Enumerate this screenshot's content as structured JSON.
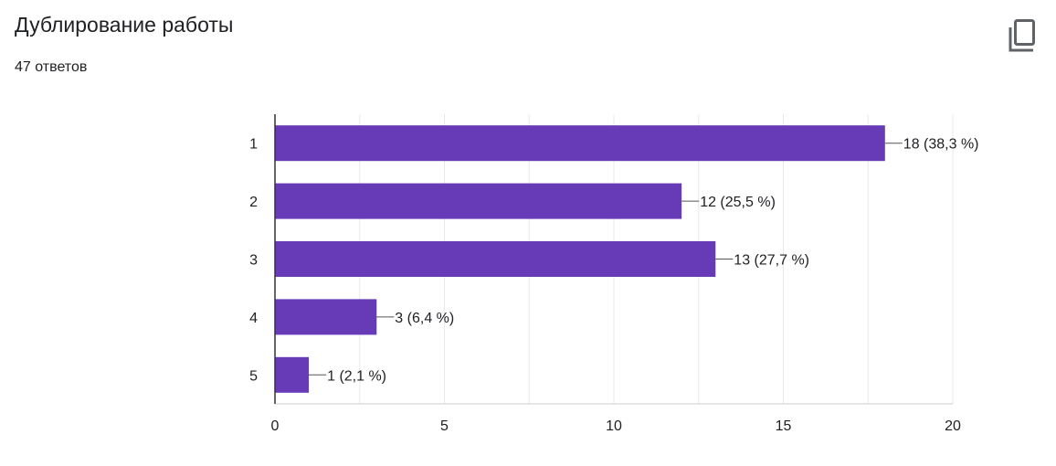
{
  "header": {
    "title": "Дублирование работы",
    "response_count": "47 ответов"
  },
  "icons": {
    "copy": "copy-icon"
  },
  "colors": {
    "bar": "#673ab7",
    "grid": "#e8e8e8",
    "axis": "#333333",
    "text": "#202124"
  },
  "chart_data": {
    "type": "bar",
    "orientation": "horizontal",
    "categories": [
      "1",
      "2",
      "3",
      "4",
      "5"
    ],
    "values": [
      18,
      12,
      13,
      3,
      1
    ],
    "data_labels": [
      "18 (38,3 %)",
      "12 (25,5 %)",
      "13 (27,7 %)",
      "3 (6,4 %)",
      "1 (2,1 %)"
    ],
    "xlim": [
      0,
      20
    ],
    "xticks": [
      0,
      5,
      10,
      15,
      20
    ],
    "grid": true
  }
}
